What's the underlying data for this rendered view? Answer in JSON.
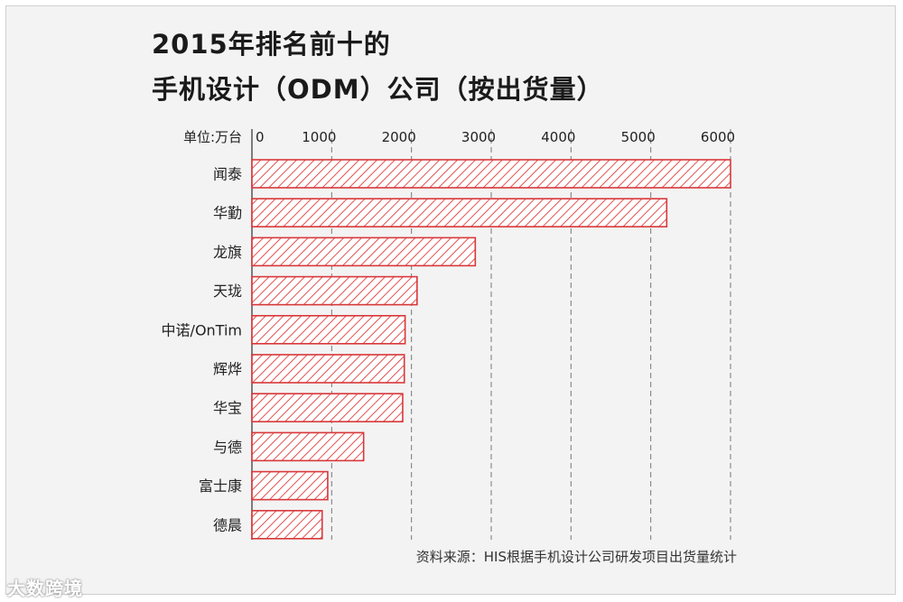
{
  "title_line1": "2015年排名前十的",
  "title_line2": "手机设计（ODM）公司（按出货量）",
  "unit_label": "单位:万台",
  "source": "资料来源：HIS根据手机设计公司研发项目出货量统计",
  "watermark": "大数跨境",
  "colors": {
    "bar_stroke": "#d9373a",
    "bar_hatch": "#e2504f",
    "bar_fill": "#ffffff",
    "grid": "#777777",
    "text": "#222222"
  },
  "chart_data": {
    "type": "bar",
    "orientation": "horizontal",
    "title": "2015年排名前十的 手机设计（ODM）公司（按出货量）",
    "xlabel": "单位:万台",
    "ylabel": "",
    "xlim": [
      0,
      6000
    ],
    "ticks": [
      0,
      1000,
      2000,
      3000,
      4000,
      5000,
      6000
    ],
    "grid": "vertical dashed",
    "categories": [
      "闻泰",
      "华勤",
      "龙旗",
      "天珑",
      "中诺/OnTim",
      "辉烨",
      "华宝",
      "与德",
      "富士康",
      "德晨"
    ],
    "values": [
      6000,
      5200,
      2800,
      2070,
      1920,
      1910,
      1890,
      1400,
      950,
      880
    ]
  }
}
